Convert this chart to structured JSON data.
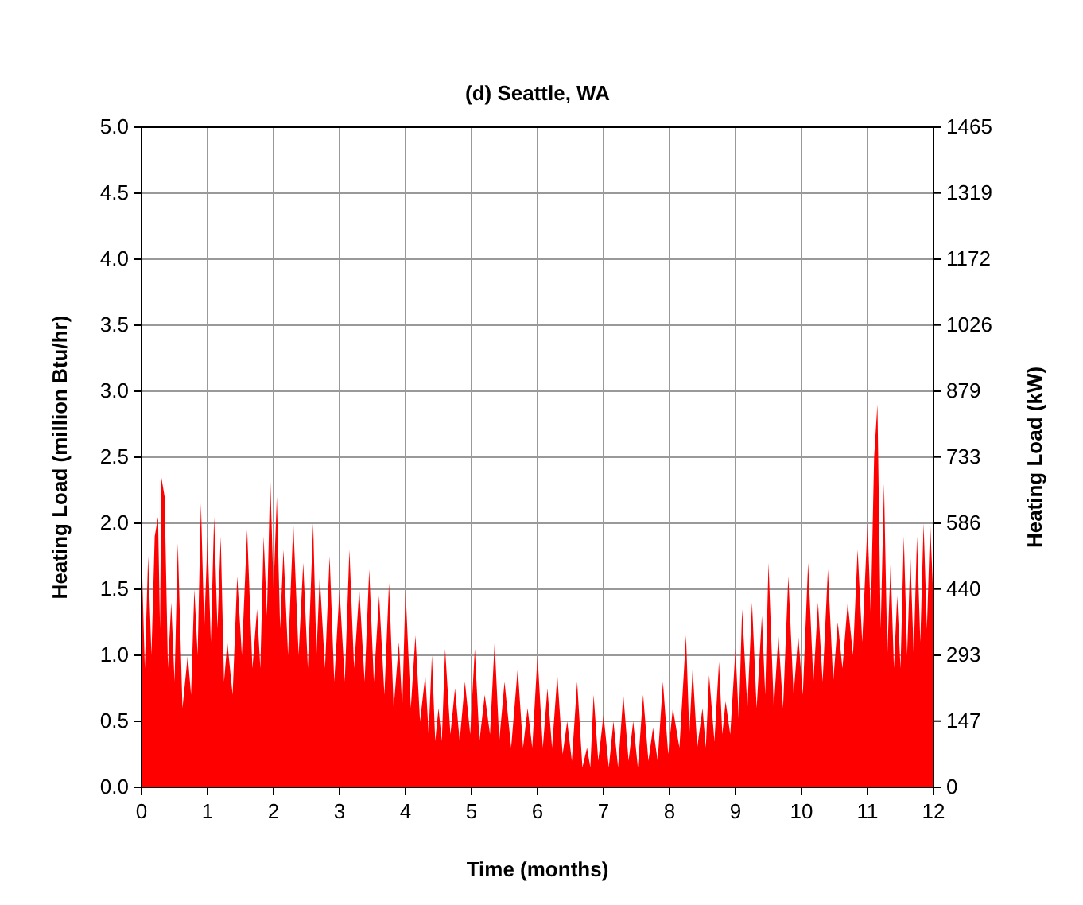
{
  "chart_data": {
    "type": "area",
    "title": "(d) Seattle, WA",
    "xlabel": "Time (months)",
    "ylabel": "Heating Load (million Btu/hr)",
    "y2label": "Heating Load (kW)",
    "x": [
      0,
      0.05,
      0.1,
      0.15,
      0.2,
      0.25,
      0.28,
      0.3,
      0.35,
      0.4,
      0.45,
      0.5,
      0.55,
      0.62,
      0.7,
      0.75,
      0.8,
      0.85,
      0.9,
      0.95,
      1.0,
      1.05,
      1.1,
      1.15,
      1.2,
      1.25,
      1.3,
      1.38,
      1.45,
      1.52,
      1.6,
      1.68,
      1.75,
      1.8,
      1.85,
      1.9,
      1.95,
      2.0,
      2.05,
      2.1,
      2.15,
      2.22,
      2.3,
      2.38,
      2.45,
      2.52,
      2.6,
      2.65,
      2.7,
      2.78,
      2.85,
      2.92,
      3.0,
      3.08,
      3.15,
      3.22,
      3.3,
      3.38,
      3.45,
      3.52,
      3.6,
      3.68,
      3.75,
      3.82,
      3.9,
      3.95,
      4.0,
      4.08,
      4.15,
      4.22,
      4.3,
      4.35,
      4.4,
      4.45,
      4.5,
      4.55,
      4.6,
      4.68,
      4.75,
      4.82,
      4.9,
      4.98,
      5.05,
      5.12,
      5.2,
      5.28,
      5.35,
      5.42,
      5.5,
      5.6,
      5.7,
      5.78,
      5.85,
      5.92,
      6.0,
      6.08,
      6.15,
      6.22,
      6.3,
      6.38,
      6.45,
      6.52,
      6.6,
      6.68,
      6.75,
      6.8,
      6.85,
      6.92,
      7.0,
      7.08,
      7.15,
      7.22,
      7.3,
      7.38,
      7.45,
      7.52,
      7.6,
      7.68,
      7.75,
      7.82,
      7.9,
      7.98,
      8.05,
      8.15,
      8.25,
      8.3,
      8.35,
      8.42,
      8.5,
      8.55,
      8.6,
      8.68,
      8.75,
      8.8,
      8.85,
      8.92,
      9.0,
      9.05,
      9.1,
      9.18,
      9.25,
      9.32,
      9.4,
      9.45,
      9.5,
      9.58,
      9.65,
      9.72,
      9.8,
      9.88,
      9.95,
      10.02,
      10.1,
      10.18,
      10.25,
      10.32,
      10.4,
      10.48,
      10.55,
      10.62,
      10.7,
      10.78,
      10.85,
      10.92,
      11.0,
      11.05,
      11.1,
      11.15,
      11.2,
      11.25,
      11.3,
      11.35,
      11.4,
      11.45,
      11.5,
      11.55,
      11.6,
      11.65,
      11.7,
      11.75,
      11.8,
      11.85,
      11.9,
      11.95,
      12.0
    ],
    "values": [
      1.8,
      0.9,
      1.75,
      1.0,
      1.9,
      2.05,
      1.2,
      2.35,
      2.2,
      0.9,
      1.4,
      0.8,
      1.85,
      0.6,
      1.0,
      0.7,
      1.5,
      1.0,
      2.15,
      1.2,
      1.9,
      1.1,
      2.05,
      1.2,
      1.9,
      0.8,
      1.1,
      0.7,
      1.6,
      1.0,
      1.95,
      0.9,
      1.35,
      0.9,
      1.9,
      1.3,
      2.35,
      1.5,
      2.2,
      1.2,
      1.8,
      1.0,
      2.0,
      1.0,
      1.7,
      0.9,
      2.0,
      1.0,
      1.6,
      0.9,
      1.75,
      0.8,
      1.5,
      0.8,
      1.8,
      0.9,
      1.5,
      0.8,
      1.65,
      0.8,
      1.45,
      0.7,
      1.55,
      0.6,
      1.1,
      0.6,
      1.5,
      0.6,
      1.15,
      0.5,
      0.85,
      0.4,
      1.0,
      0.35,
      0.6,
      0.35,
      1.05,
      0.4,
      0.75,
      0.35,
      0.8,
      0.4,
      1.05,
      0.35,
      0.7,
      0.4,
      1.1,
      0.35,
      0.8,
      0.3,
      0.9,
      0.3,
      0.6,
      0.3,
      1.0,
      0.3,
      0.75,
      0.3,
      0.85,
      0.25,
      0.5,
      0.2,
      0.8,
      0.15,
      0.3,
      0.15,
      0.7,
      0.2,
      0.55,
      0.15,
      0.5,
      0.15,
      0.7,
      0.2,
      0.5,
      0.15,
      0.7,
      0.2,
      0.45,
      0.2,
      0.8,
      0.25,
      0.6,
      0.3,
      1.15,
      0.4,
      0.9,
      0.3,
      0.6,
      0.3,
      0.85,
      0.35,
      0.95,
      0.4,
      0.65,
      0.4,
      1.05,
      0.5,
      1.35,
      0.6,
      1.4,
      0.6,
      1.3,
      0.7,
      1.7,
      0.6,
      1.15,
      0.6,
      1.6,
      0.7,
      1.15,
      0.7,
      1.7,
      0.8,
      1.4,
      0.8,
      1.65,
      0.8,
      1.25,
      0.9,
      1.4,
      1.0,
      1.8,
      1.1,
      2.0,
      1.3,
      2.5,
      2.9,
      1.2,
      2.3,
      1.0,
      1.7,
      0.9,
      1.45,
      0.9,
      1.9,
      1.0,
      1.75,
      1.0,
      1.9,
      1.1,
      2.0,
      1.2,
      2.0,
      1.4
    ],
    "color": "#ff0000",
    "xlim": [
      0,
      12
    ],
    "xticks": [
      0,
      1,
      2,
      3,
      4,
      5,
      6,
      7,
      8,
      9,
      10,
      11,
      12
    ],
    "ylim": [
      0,
      5
    ],
    "yticks": [
      {
        "value": 0,
        "label": "0.0"
      },
      {
        "value": 0.5,
        "label": "0.5"
      },
      {
        "value": 1,
        "label": "1.0"
      },
      {
        "value": 1.5,
        "label": "1.5"
      },
      {
        "value": 2,
        "label": "2.0"
      },
      {
        "value": 2.5,
        "label": "2.5"
      },
      {
        "value": 3,
        "label": "3.0"
      },
      {
        "value": 3.5,
        "label": "3.5"
      },
      {
        "value": 4,
        "label": "4.0"
      },
      {
        "value": 4.5,
        "label": "4.5"
      },
      {
        "value": 5,
        "label": "5.0"
      }
    ],
    "y2lim": [
      0,
      1465
    ],
    "y2ticks": [
      0,
      147,
      293,
      440,
      586,
      733,
      879,
      1026,
      1172,
      1319,
      1465
    ],
    "grid": true
  }
}
